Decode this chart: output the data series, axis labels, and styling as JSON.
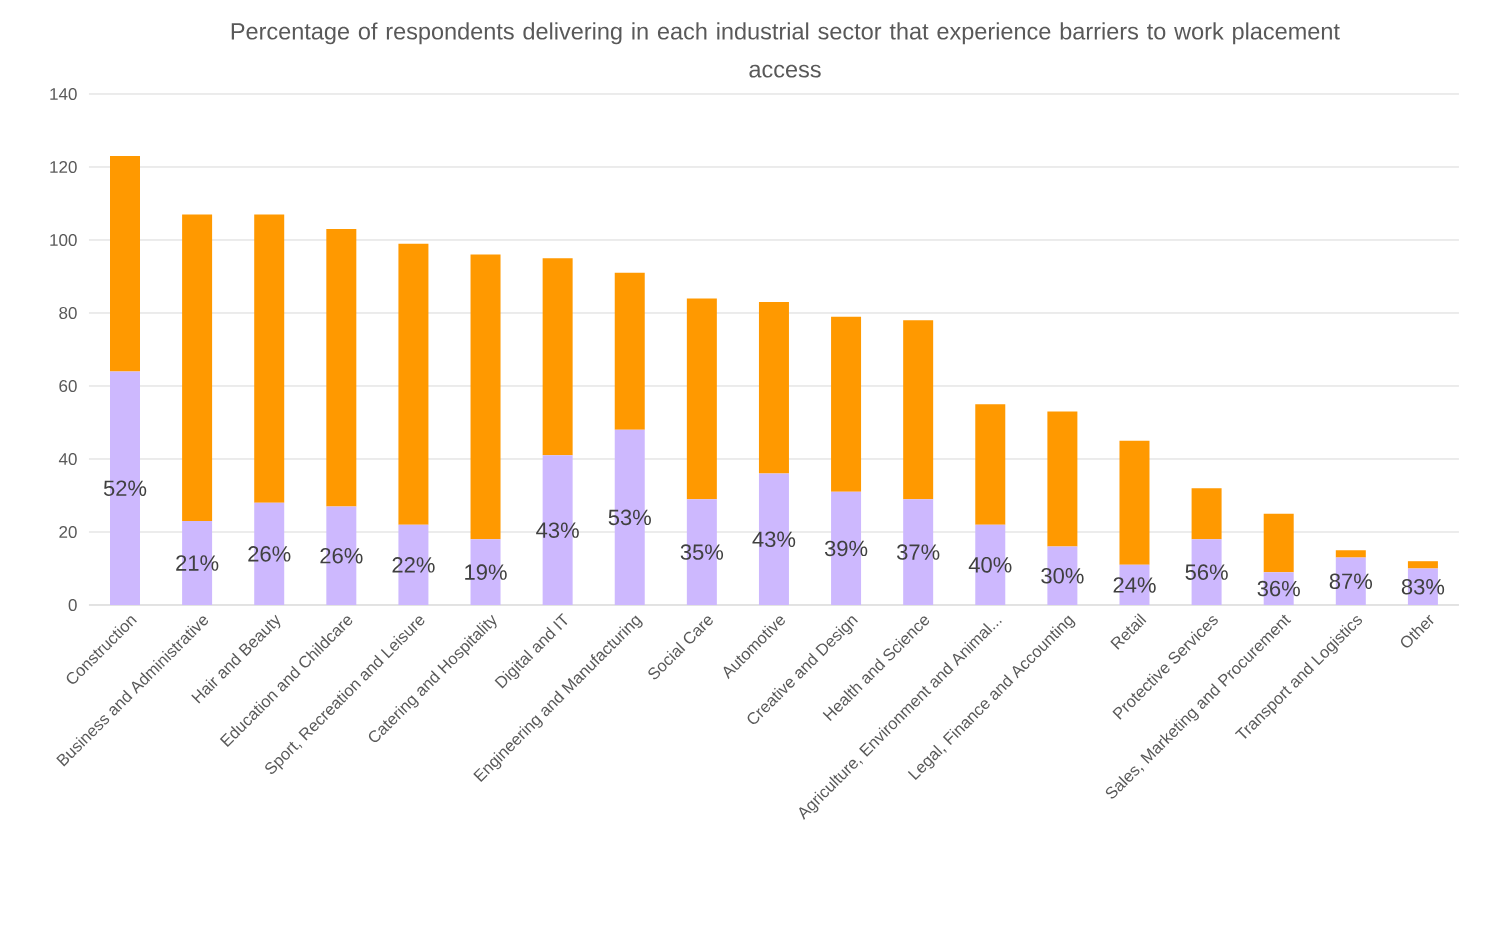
{
  "chart_data": {
    "type": "bar",
    "stacked": true,
    "title": "Percentage of respondents delivering in each industrial sector that experience barriers to work placement access",
    "categories": [
      "Construction",
      "Business and Administrative",
      "Hair and Beauty",
      "Education and Childcare",
      "Sport, Recreation and Leisure",
      "Catering and Hospitality",
      "Digital and IT",
      "Engineering and Manufacturing",
      "Social Care",
      "Automotive",
      "Creative and Design",
      "Health and Science",
      "Agriculture, Environment and Animal...",
      "Legal, Finance and Accounting",
      "Retail",
      "Protective Services",
      "Sales, Marketing and Procurement",
      "Transport and Logistics",
      "Other"
    ],
    "series": [
      {
        "color": "#cdb8fe",
        "values": [
          64,
          23,
          28,
          27,
          22,
          18,
          41,
          48,
          29,
          36,
          31,
          29,
          22,
          16,
          11,
          18,
          9,
          13,
          10
        ]
      },
      {
        "color": "#ff9900",
        "values": [
          59,
          84,
          79,
          76,
          77,
          78,
          54,
          43,
          55,
          47,
          48,
          49,
          33,
          37,
          34,
          14,
          16,
          2,
          2
        ]
      }
    ],
    "annotations": [
      "52%",
      "21%",
      "26%",
      "26%",
      "22%",
      "19%",
      "43%",
      "53%",
      "35%",
      "43%",
      "39%",
      "37%",
      "40%",
      "30%",
      "24%",
      "56%",
      "36%",
      "87%",
      "83%"
    ],
    "ylim": [
      0,
      140
    ],
    "yticks": [
      0,
      20,
      40,
      60,
      80,
      100,
      120,
      140
    ],
    "grid": "y"
  }
}
